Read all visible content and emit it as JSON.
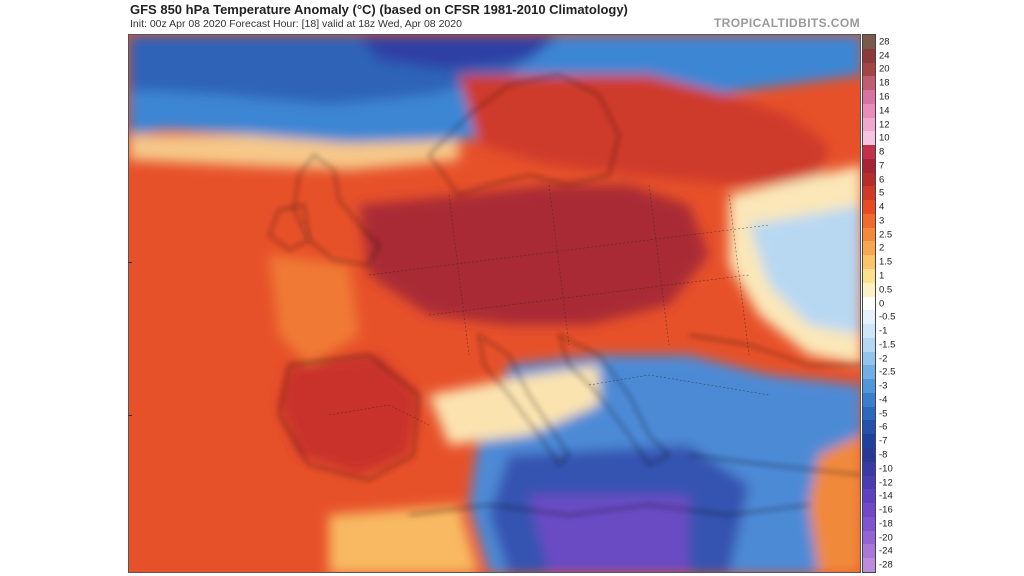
{
  "header": {
    "title": "GFS 850 hPa Temperature Anomaly (°C) (based on CFSR 1981-2010 Climatology)",
    "subtitle": "Init: 00z Apr 08 2020   Forecast Hour: [18]   valid at 18z Wed, Apr 08 2020",
    "brand": "TROPICALTIDBITS.COM"
  },
  "colorbar": {
    "labels": [
      "28",
      "24",
      "20",
      "18",
      "16",
      "14",
      "12",
      "10",
      "8",
      "7",
      "6",
      "5",
      "4",
      "3",
      "2.5",
      "2",
      "1.5",
      "1",
      "0.5",
      "0",
      "-0.5",
      "-1",
      "-1.5",
      "-2",
      "-2.5",
      "-3",
      "-4",
      "-5",
      "-6",
      "-7",
      "-8",
      "-10",
      "-12",
      "-14",
      "-16",
      "-18",
      "-20",
      "-24",
      "-28"
    ],
    "colors": [
      "#7a5a4a",
      "#8c3a3a",
      "#a44444",
      "#c05c74",
      "#d872a0",
      "#e88cbc",
      "#f0a8cf",
      "#f6c4de",
      "#c2304a",
      "#a82434",
      "#b82c2c",
      "#d33a26",
      "#e94a22",
      "#f06a2e",
      "#f5893a",
      "#f8a650",
      "#fbc46a",
      "#fde08e",
      "#fdf0c4",
      "#ffffff",
      "#e6f2fb",
      "#cfe6f7",
      "#b4d8f2",
      "#92c4ec",
      "#70aee4",
      "#4f96da",
      "#3a7fce",
      "#2c68c0",
      "#2352ae",
      "#2040a0",
      "#283896",
      "#3a3aa6",
      "#4c3cb4",
      "#5e40c0",
      "#7048c8",
      "#8054ce",
      "#9464d4",
      "#a878d8",
      "#bc8cdc"
    ]
  },
  "map": {
    "name": "Europe 850 hPa temperature anomaly field"
  }
}
